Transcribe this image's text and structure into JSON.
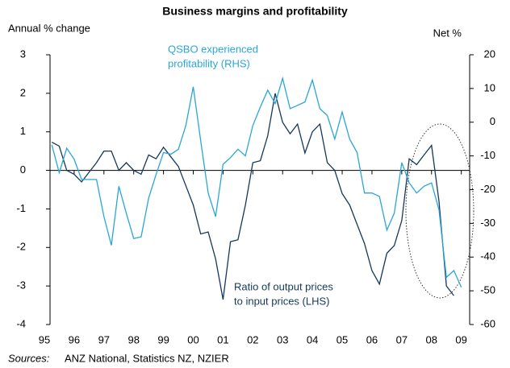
{
  "chart_data": {
    "type": "line",
    "title": "Business margins and profitability",
    "y_label": "Annual % change",
    "y2_label": "Net %",
    "source_label": "Sources:",
    "source": "ANZ National, Statistics NZ, NZIER",
    "xlim": [
      1995.19,
      2009.28
    ],
    "xticks": [
      {
        "value": 1995,
        "label": "95"
      },
      {
        "value": 1996,
        "label": "96"
      },
      {
        "value": 1997,
        "label": "97"
      },
      {
        "value": 1998,
        "label": "98"
      },
      {
        "value": 1999,
        "label": "99"
      },
      {
        "value": 2000,
        "label": "00"
      },
      {
        "value": 2001,
        "label": "01"
      },
      {
        "value": 2002,
        "label": "02"
      },
      {
        "value": 2003,
        "label": "03"
      },
      {
        "value": 2004,
        "label": "04"
      },
      {
        "value": 2005,
        "label": "05"
      },
      {
        "value": 2006,
        "label": "06"
      },
      {
        "value": 2007,
        "label": "07"
      },
      {
        "value": 2008,
        "label": "08"
      },
      {
        "value": 2009,
        "label": "09"
      }
    ],
    "ylim": [
      -4,
      3
    ],
    "yticks": [
      -4,
      -3,
      -2,
      -1,
      0,
      1,
      2,
      3
    ],
    "y2lim": [
      -60,
      20
    ],
    "y2ticks": [
      -60,
      -50,
      -40,
      -30,
      -20,
      -10,
      0,
      10,
      20
    ],
    "series": [
      {
        "name": "Ratio of output prices to input prices (LHS)",
        "color": "#15385a",
        "axis": "y",
        "label_lines": [
          "Ratio of output prices",
          "to input prices (LHS)"
        ],
        "x": [
          1995.25,
          1995.5,
          1995.75,
          1996,
          1996.25,
          1996.5,
          1996.75,
          1997,
          1997.25,
          1997.5,
          1997.75,
          1998,
          1998.25,
          1998.5,
          1998.75,
          1999,
          1999.25,
          1999.5,
          1999.75,
          2000,
          2000.25,
          2000.5,
          2000.75,
          2001,
          2001.25,
          2001.5,
          2001.75,
          2002,
          2002.25,
          2002.5,
          2002.75,
          2003,
          2003.25,
          2003.5,
          2003.75,
          2004,
          2004.25,
          2004.5,
          2004.75,
          2005,
          2005.25,
          2005.5,
          2005.75,
          2006,
          2006.25,
          2006.5,
          2006.75,
          2007,
          2007.25,
          2007.5,
          2007.75,
          2008,
          2008.25,
          2008.5,
          2008.75
        ],
        "values": [
          0.73,
          0.63,
          0.0,
          -0.1,
          -0.3,
          -0.05,
          0.2,
          0.5,
          0.5,
          0.0,
          0.2,
          0.0,
          -0.1,
          0.4,
          0.3,
          0.6,
          0.35,
          0.1,
          -0.4,
          -0.9,
          -1.65,
          -1.6,
          -2.3,
          -3.35,
          -1.85,
          -1.8,
          -0.9,
          0.2,
          0.25,
          0.9,
          2.0,
          1.25,
          0.95,
          1.2,
          0.45,
          1.0,
          1.2,
          0.2,
          0.0,
          -0.6,
          -0.9,
          -1.4,
          -1.9,
          -2.6,
          -2.95,
          -2.15,
          -1.95,
          -1.3,
          0.3,
          0.15,
          0.4,
          0.65,
          -0.8,
          -3.0,
          -3.25
        ]
      },
      {
        "name": "QSBO experienced profitability (RHS)",
        "color": "#2aa6d6",
        "axis": "y2",
        "label_lines": [
          "QSBO experienced",
          "profitability (RHS)"
        ],
        "x": [
          1995.25,
          1995.5,
          1995.75,
          1996,
          1996.25,
          1996.5,
          1996.75,
          1997,
          1997.25,
          1997.5,
          1997.75,
          1998,
          1998.25,
          1998.5,
          1998.75,
          1999,
          1999.25,
          1999.5,
          1999.75,
          2000,
          2000.25,
          2000.5,
          2000.75,
          2001,
          2001.25,
          2001.5,
          2001.75,
          2002,
          2002.25,
          2002.5,
          2002.75,
          2003,
          2003.25,
          2003.5,
          2003.75,
          2004,
          2004.25,
          2004.5,
          2004.75,
          2005,
          2005.25,
          2005.5,
          2005.75,
          2006,
          2006.25,
          2006.5,
          2006.75,
          2007,
          2007.25,
          2007.5,
          2007.75,
          2008,
          2008.25,
          2008.5,
          2008.75,
          2009
        ],
        "values": [
          -6.7,
          -15,
          -7.7,
          -11,
          -17,
          -17,
          -17,
          -28,
          -36.5,
          -19,
          -27,
          -34.5,
          -34,
          -22.5,
          -15.5,
          -9,
          -9.5,
          -8,
          -1,
          10.5,
          -5.5,
          -21,
          -28,
          -12.5,
          -10.5,
          -8,
          -10,
          -1,
          4.5,
          9.5,
          5.5,
          13,
          4,
          5,
          6,
          12.5,
          4,
          2,
          -5,
          3,
          -5,
          -9,
          -21,
          -21,
          -22,
          -32,
          -27,
          -12,
          -18,
          -21,
          -19,
          -18,
          -26,
          -46,
          -44,
          -49
        ]
      }
    ]
  }
}
